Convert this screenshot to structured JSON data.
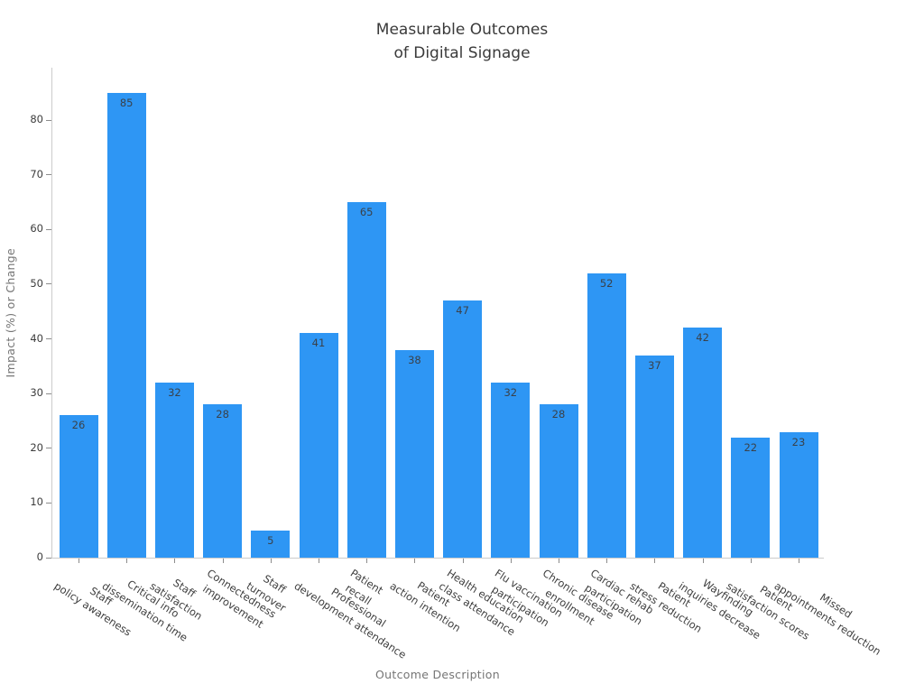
{
  "chart_data": {
    "type": "bar",
    "title": "Measurable Outcomes\nof Digital Signage",
    "xlabel": "Outcome Description",
    "ylabel": "Impact (%) or Change",
    "categories": [
      "Staff\npolicy awareness",
      "Critical info\ndissemination time",
      "Staff\nsatisfaction",
      "Connectedness\nimprovement",
      "Staff\nturnover",
      "Professional\ndevelopment attendance",
      "Patient\nrecall",
      "Patient\naction intention",
      "Health education\nclass attendance",
      "Flu vaccination\nparticipation",
      "Chronic disease\nenrollment",
      "Cardiac rehab\nparticipation",
      "Patient\nstress reduction",
      "Wayfinding\ninquiries decrease",
      "Patient\nsatisfaction scores",
      "Missed\nappointments reduction"
    ],
    "values": [
      26,
      85,
      32,
      28,
      5,
      41,
      65,
      38,
      47,
      32,
      28,
      52,
      37,
      42,
      22,
      23
    ],
    "yticks": [
      0,
      10,
      20,
      30,
      40,
      50,
      60,
      70,
      80
    ],
    "ylim": [
      0,
      90
    ],
    "grid": false,
    "legend": null,
    "bar_color": "#2E96F4",
    "value_label_color": "#3a4149",
    "title_color": "#3a3a3a",
    "axis_label_color": "#757575",
    "tick_label_color": "#3d3d3d",
    "spine_color": "#cccccc",
    "tick_mark_color": "#8c8c8c"
  }
}
